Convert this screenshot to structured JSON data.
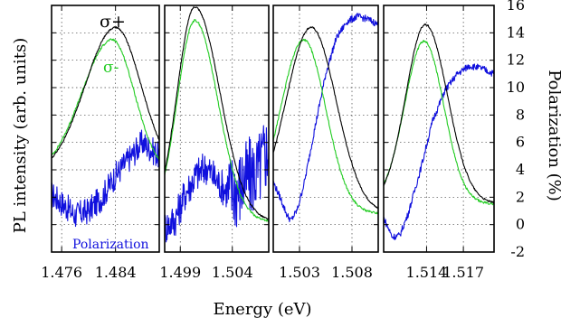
{
  "chart_data": {
    "type": "line",
    "xlabel": "Energy (eV)",
    "ylabel_left": "PL intensity (arb. units)",
    "ylabel_right": "Polarization (%)",
    "y_right_ticks": [
      "16",
      "14",
      "12",
      "10",
      "8",
      "6",
      "4",
      "2",
      "0",
      "-2"
    ],
    "y_right_range": [
      -2,
      16
    ],
    "grid": true,
    "annotations": {
      "sigma_plus": "σ+",
      "sigma_minus": "σ-",
      "polarization": "Polarization"
    },
    "colors": {
      "sigma_plus": "#000000",
      "sigma_minus": "#22cc22",
      "polarization": "#1010dd"
    },
    "panels": [
      {
        "x_range": [
          1.4745,
          1.4905
        ],
        "x_ticks": [
          "1.476",
          "1.484"
        ],
        "x_tick_values": [
          1.476,
          1.484
        ],
        "sigma_plus": {
          "peak": 1.484,
          "width_left": 0.0045,
          "width_right": 0.0038,
          "base": 3.7,
          "amp": 10.7
        },
        "sigma_minus": {
          "peak": 1.4835,
          "width_left": 0.0045,
          "width_right": 0.0033,
          "base": 3.7,
          "amp": 9.8
        },
        "polarization": [
          [
            1.4745,
            2.2
          ],
          [
            1.476,
            1.6
          ],
          [
            1.478,
            0.7
          ],
          [
            1.48,
            1.0
          ],
          [
            1.482,
            2.0
          ],
          [
            1.484,
            3.6
          ],
          [
            1.486,
            4.8
          ],
          [
            1.488,
            6.0
          ],
          [
            1.489,
            5.6
          ],
          [
            1.4905,
            5.0
          ]
        ]
      },
      {
        "x_range": [
          1.4975,
          1.5075
        ],
        "x_ticks": [
          "1.499",
          "1.504"
        ],
        "x_tick_values": [
          1.499,
          1.504
        ],
        "sigma_plus": {
          "peak": 1.5004,
          "width_left": 0.0017,
          "width_right": 0.0024,
          "base": 0.2,
          "amp": 15.7
        },
        "sigma_minus": {
          "peak": 1.5004,
          "width_left": 0.0017,
          "width_right": 0.0022,
          "base": 0.2,
          "amp": 14.7
        },
        "polarization": [
          [
            1.4975,
            -0.2
          ],
          [
            1.4985,
            0.4
          ],
          [
            1.4995,
            2.3
          ],
          [
            1.5005,
            3.6
          ],
          [
            1.5015,
            4.2
          ],
          [
            1.5025,
            3.2
          ],
          [
            1.5035,
            2.4
          ],
          [
            1.5045,
            2.6
          ],
          [
            1.5055,
            3.4
          ],
          [
            1.5065,
            3.9
          ],
          [
            1.5075,
            5.8
          ]
        ]
      },
      {
        "x_range": [
          1.5005,
          1.5105
        ],
        "x_ticks": [
          "1.503",
          "1.508"
        ],
        "x_tick_values": [
          1.503,
          1.508
        ],
        "sigma_plus": {
          "peak": 1.5041,
          "width_left": 0.0024,
          "width_right": 0.0024,
          "base": 0.8,
          "amp": 13.6
        },
        "sigma_minus": {
          "peak": 1.5034,
          "width_left": 0.0022,
          "width_right": 0.0021,
          "base": 0.8,
          "amp": 12.7
        },
        "polarization": [
          [
            1.5005,
            3.1
          ],
          [
            1.5012,
            1.9
          ],
          [
            1.5018,
            0.7
          ],
          [
            1.5022,
            0.3
          ],
          [
            1.5028,
            1.1
          ],
          [
            1.5035,
            3.2
          ],
          [
            1.5045,
            7.2
          ],
          [
            1.5055,
            11.0
          ],
          [
            1.5065,
            13.6
          ],
          [
            1.5075,
            14.8
          ],
          [
            1.5085,
            15.2
          ],
          [
            1.5095,
            15.0
          ],
          [
            1.5105,
            14.6
          ]
        ]
      },
      {
        "x_range": [
          1.5105,
          1.5195
        ],
        "x_ticks": [
          "1.514",
          "1.517"
        ],
        "x_tick_values": [
          1.514,
          1.517
        ],
        "sigma_plus": {
          "peak": 1.5139,
          "width_left": 0.0016,
          "width_right": 0.0018,
          "base": 1.5,
          "amp": 13.1
        },
        "sigma_minus": {
          "peak": 1.5138,
          "width_left": 0.0016,
          "width_right": 0.0016,
          "base": 1.5,
          "amp": 11.9
        },
        "polarization": [
          [
            1.5105,
            0.5
          ],
          [
            1.5112,
            -0.9
          ],
          [
            1.5118,
            -0.8
          ],
          [
            1.5125,
            0.8
          ],
          [
            1.5135,
            4.0
          ],
          [
            1.5145,
            7.6
          ],
          [
            1.5155,
            9.8
          ],
          [
            1.5165,
            11.0
          ],
          [
            1.5175,
            11.6
          ],
          [
            1.5185,
            11.4
          ],
          [
            1.5195,
            11.0
          ]
        ]
      }
    ]
  }
}
